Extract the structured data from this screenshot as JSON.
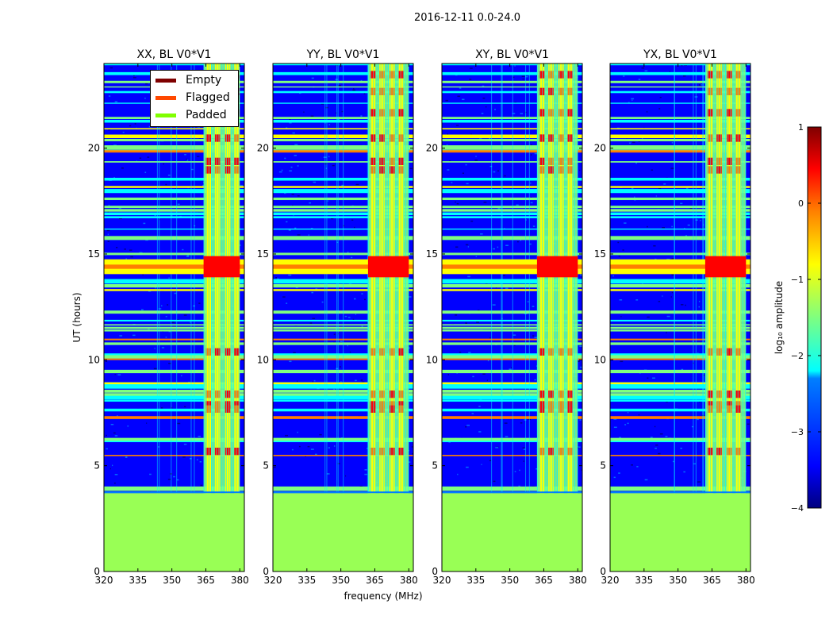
{
  "figure_title": "2016-12-11 0.0-24.0",
  "colors": {
    "empty": "#7f0000",
    "flagged": "#ff4800",
    "padded": "#80ff00",
    "padded_fill": "#99ff55",
    "cmap": [
      "#00007f",
      "#0000ff",
      "#007fff",
      "#00ffff",
      "#7fff7f",
      "#ffff00",
      "#ff7f00",
      "#ff0000",
      "#7f0000"
    ]
  },
  "chart_data": {
    "type": "heatmap",
    "xlabel": "frequency (MHz)",
    "ylabel": "UT (hours)",
    "xlim": [
      320,
      382
    ],
    "ylim": [
      0,
      24
    ],
    "xticks": [
      "320",
      "335",
      "350",
      "365",
      "380"
    ],
    "xtick_values": [
      320,
      335,
      350,
      365,
      380
    ],
    "yticks": [
      "0",
      "5",
      "10",
      "15",
      "20"
    ],
    "ytick_values": [
      0,
      5,
      10,
      15,
      20
    ],
    "padded_below_ut": 3.7,
    "strong_band_mhz": [
      362,
      380
    ],
    "rfi_event_ut": 14.3,
    "panels": [
      {
        "title": "XX, BL V0*V1",
        "show_legend": true
      },
      {
        "title": "YY, BL V0*V1",
        "show_legend": false
      },
      {
        "title": "XY, BL V0*V1",
        "show_legend": false
      },
      {
        "title": "YX, BL V0*V1",
        "show_legend": false
      }
    ],
    "legend": [
      {
        "label": "Empty",
        "color": "#7f0000"
      },
      {
        "label": "Flagged",
        "color": "#ff4800"
      },
      {
        "label": "Padded",
        "color": "#80ff00"
      }
    ],
    "colorbar": {
      "label": "log₁₀ amplitude",
      "range": [
        -4,
        1
      ],
      "ticks": [
        "1",
        "0",
        "−1",
        "−2",
        "−3",
        "−4"
      ],
      "tick_values": [
        1,
        0,
        -1,
        -2,
        -3,
        -4
      ]
    }
  }
}
